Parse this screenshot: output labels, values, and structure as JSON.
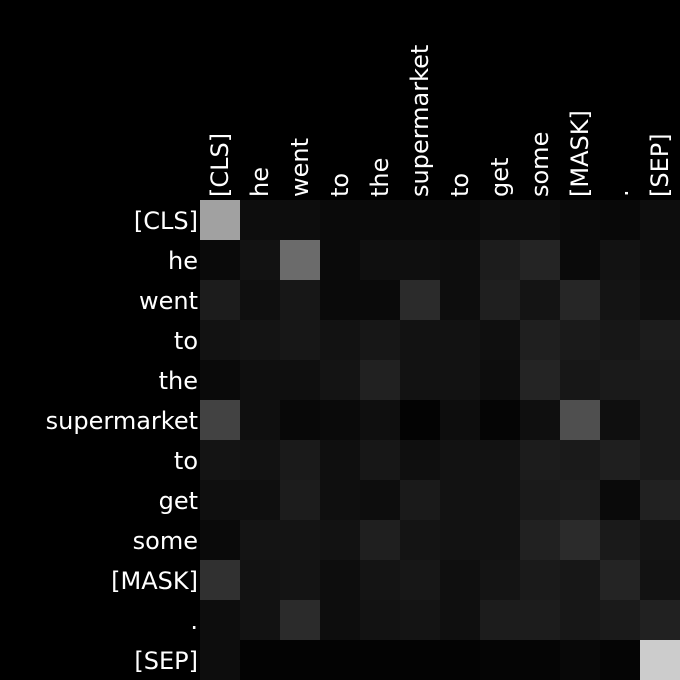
{
  "chart_data": {
    "type": "heatmap",
    "title": "",
    "xlabel": "",
    "ylabel": "",
    "colormap": "grayscale",
    "x_tokens": [
      "[CLS]",
      "he",
      "went",
      "to",
      "the",
      "supermarket",
      "to",
      "get",
      "some",
      "[MASK]",
      ".",
      "[SEP]"
    ],
    "y_tokens": [
      "[CLS]",
      "he",
      "went",
      "to",
      "the",
      "supermarket",
      "to",
      "get",
      "some",
      "[MASK]",
      ".",
      "[SEP]"
    ],
    "values": [
      [
        0.63,
        0.05,
        0.05,
        0.04,
        0.04,
        0.04,
        0.04,
        0.05,
        0.05,
        0.04,
        0.03,
        0.05
      ],
      [
        0.04,
        0.07,
        0.42,
        0.04,
        0.06,
        0.06,
        0.05,
        0.11,
        0.14,
        0.04,
        0.07,
        0.05
      ],
      [
        0.11,
        0.06,
        0.09,
        0.04,
        0.04,
        0.17,
        0.05,
        0.12,
        0.08,
        0.15,
        0.08,
        0.06
      ],
      [
        0.07,
        0.08,
        0.09,
        0.07,
        0.09,
        0.07,
        0.07,
        0.06,
        0.12,
        0.1,
        0.09,
        0.11
      ],
      [
        0.04,
        0.06,
        0.06,
        0.08,
        0.13,
        0.07,
        0.07,
        0.05,
        0.14,
        0.09,
        0.1,
        0.1
      ],
      [
        0.26,
        0.06,
        0.03,
        0.04,
        0.06,
        0.01,
        0.05,
        0.02,
        0.06,
        0.31,
        0.06,
        0.1
      ],
      [
        0.08,
        0.07,
        0.1,
        0.06,
        0.09,
        0.06,
        0.07,
        0.07,
        0.11,
        0.1,
        0.12,
        0.1
      ],
      [
        0.06,
        0.06,
        0.11,
        0.06,
        0.05,
        0.1,
        0.07,
        0.07,
        0.1,
        0.11,
        0.04,
        0.13
      ],
      [
        0.04,
        0.08,
        0.08,
        0.07,
        0.12,
        0.08,
        0.07,
        0.07,
        0.13,
        0.17,
        0.1,
        0.08
      ],
      [
        0.19,
        0.07,
        0.08,
        0.05,
        0.08,
        0.09,
        0.06,
        0.08,
        0.1,
        0.09,
        0.14,
        0.07
      ],
      [
        0.05,
        0.07,
        0.17,
        0.05,
        0.07,
        0.08,
        0.06,
        0.11,
        0.11,
        0.09,
        0.1,
        0.13
      ],
      [
        0.05,
        0.01,
        0.01,
        0.01,
        0.01,
        0.01,
        0.01,
        0.02,
        0.02,
        0.03,
        0.02,
        0.8
      ]
    ],
    "value_range": [
      0,
      1
    ],
    "grid": false,
    "legend": "none"
  }
}
